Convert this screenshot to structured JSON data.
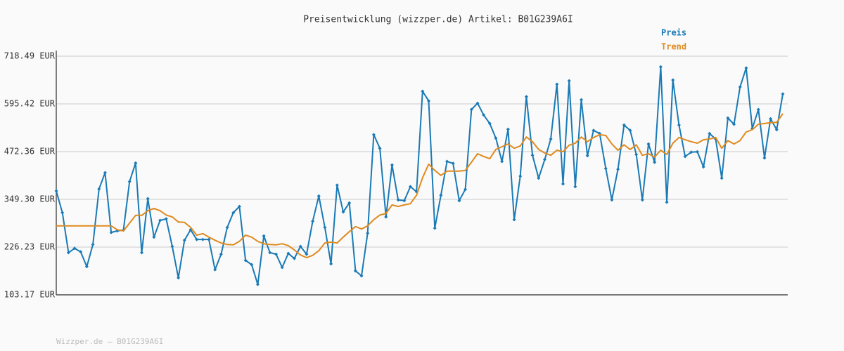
{
  "chart_data": {
    "type": "line",
    "title": "Preisentwicklung (wizzper.de) Artikel: B01G239A6I",
    "footer": "Wizzper.de – B01G239A6I",
    "ylim": [
      103.17,
      718.49
    ],
    "yticks": [
      {
        "value": 103.17,
        "label": "103.17 EUR"
      },
      {
        "value": 226.23,
        "label": "226.23 EUR"
      },
      {
        "value": 349.3,
        "label": "349.30 EUR"
      },
      {
        "value": 472.36,
        "label": "472.36 EUR"
      },
      {
        "value": 595.42,
        "label": "595.42 EUR"
      },
      {
        "value": 718.49,
        "label": "718.49 EUR"
      }
    ],
    "grid": true,
    "legend": "top-right",
    "series": [
      {
        "name": "Preis",
        "color": "#1a7ab5",
        "markers": true,
        "values": [
          371,
          315,
          212,
          223,
          214,
          176,
          233,
          376,
          418,
          264,
          268,
          270,
          395,
          443,
          212,
          351,
          252,
          295,
          299,
          228,
          147,
          244,
          271,
          246,
          246,
          246,
          168,
          208,
          277,
          315,
          331,
          192,
          181,
          130,
          255,
          212,
          208,
          174,
          210,
          197,
          228,
          208,
          293,
          358,
          277,
          183,
          386,
          317,
          340,
          165,
          152,
          262,
          516,
          481,
          304,
          438,
          348,
          346,
          382,
          369,
          628,
          603,
          275,
          360,
          447,
          442,
          346,
          375,
          581,
          597,
          567,
          545,
          507,
          447,
          530,
          297,
          409,
          614,
          463,
          404,
          452,
          505,
          646,
          389,
          655,
          382,
          606,
          462,
          527,
          519,
          429,
          348,
          427,
          541,
          527,
          465,
          348,
          492,
          445,
          691,
          342,
          657,
          541,
          460,
          471,
          472,
          433,
          519,
          505,
          404,
          559,
          543,
          639,
          688,
          532,
          581,
          456,
          557,
          529,
          621
        ]
      },
      {
        "name": "Trend",
        "color": "#e08a1e",
        "markers": false,
        "values": [
          281,
          281,
          281,
          281,
          281,
          281,
          281,
          281,
          281,
          281,
          271,
          268,
          288,
          308,
          308,
          320,
          326,
          320,
          309,
          304,
          291,
          290,
          277,
          257,
          261,
          252,
          244,
          237,
          233,
          232,
          241,
          257,
          252,
          241,
          235,
          233,
          232,
          235,
          230,
          219,
          206,
          199,
          205,
          217,
          237,
          239,
          237,
          252,
          266,
          279,
          273,
          281,
          297,
          309,
          313,
          335,
          331,
          335,
          338,
          360,
          405,
          440,
          424,
          411,
          422,
          422,
          422,
          424,
          445,
          467,
          460,
          454,
          478,
          485,
          492,
          481,
          487,
          510,
          498,
          478,
          469,
          463,
          476,
          472,
          489,
          494,
          510,
          498,
          509,
          516,
          514,
          492,
          476,
          490,
          478,
          490,
          463,
          467,
          458,
          476,
          465,
          494,
          509,
          503,
          498,
          494,
          503,
          505,
          509,
          481,
          501,
          492,
          501,
          523,
          529,
          543,
          545,
          547,
          548,
          570
        ]
      }
    ]
  }
}
